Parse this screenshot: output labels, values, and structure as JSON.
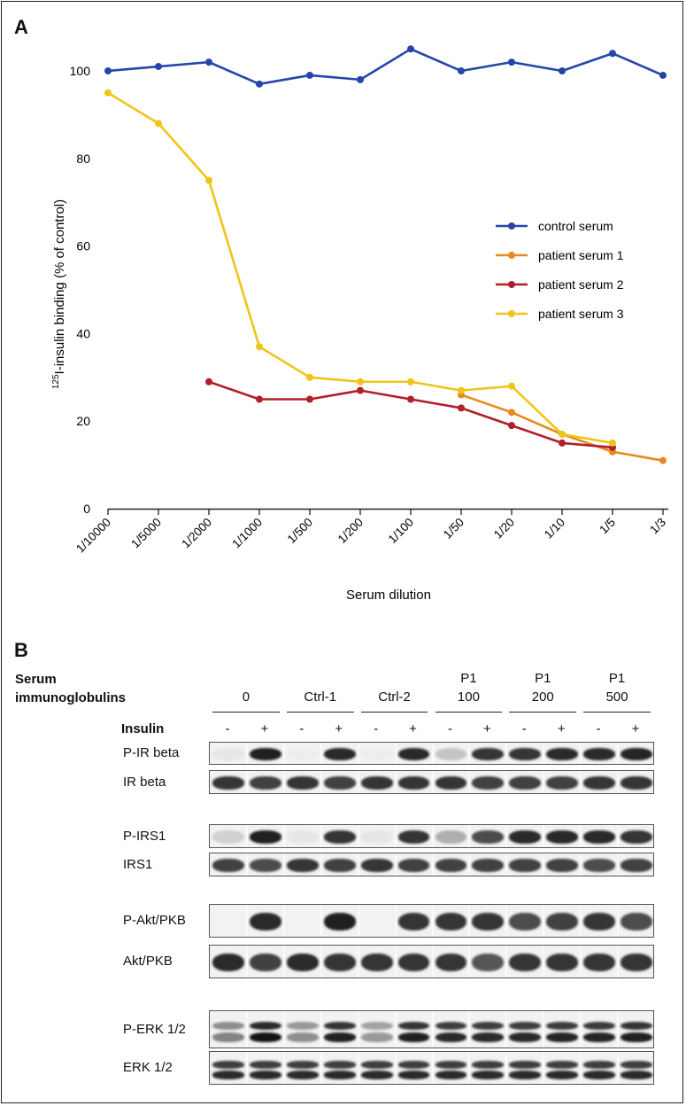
{
  "panel_a": {
    "letter": "A"
  },
  "panel_b": {
    "letter": "B"
  },
  "chart_data": {
    "type": "line",
    "title": "",
    "xlabel": "Serum dilution",
    "ylabel_sup": "125",
    "ylabel_main": "I-insulin binding (% of control)",
    "ylim": [
      0,
      100
    ],
    "yticks": [
      0,
      20,
      40,
      60,
      80,
      100
    ],
    "categories": [
      "1/10000",
      "1/5000",
      "1/2000",
      "1/1000",
      "1/500",
      "1/200",
      "1/100",
      "1/50",
      "1/20",
      "1/10",
      "1/5",
      "1/3"
    ],
    "grid": false,
    "legend_position": "right",
    "series": [
      {
        "name": "control serum",
        "color": "#2546a8",
        "values": [
          100,
          101,
          102,
          97,
          99,
          98,
          105,
          100,
          102,
          100,
          104,
          99
        ]
      },
      {
        "name": "patient serum 1",
        "color": "#e8891f",
        "values": [
          null,
          null,
          null,
          null,
          null,
          null,
          null,
          26,
          22,
          17,
          13,
          11
        ]
      },
      {
        "name": "patient serum 2",
        "color": "#b0202a",
        "values": [
          null,
          null,
          29,
          25,
          25,
          27,
          25,
          23,
          19,
          15,
          14,
          null
        ]
      },
      {
        "name": "patient serum 3",
        "color": "#f0c419",
        "values": [
          95,
          88,
          75,
          37,
          30,
          29,
          29,
          27,
          28,
          17,
          15,
          null
        ]
      }
    ]
  },
  "blot": {
    "header_line1": "Serum",
    "header_line2": "immunoglobulins",
    "insulin_label": "Insulin",
    "groups": [
      {
        "line1": "",
        "line2": "0"
      },
      {
        "line1": "",
        "line2": "Ctrl-1"
      },
      {
        "line1": "",
        "line2": "Ctrl-2"
      },
      {
        "line1": "P1",
        "line2": "100"
      },
      {
        "line1": "P1",
        "line2": "200"
      },
      {
        "line1": "P1",
        "line2": "500"
      }
    ],
    "insulin_signs": [
      "-",
      "+",
      "-",
      "+",
      "-",
      "+",
      "-",
      "+",
      "-",
      "+",
      "-",
      "+"
    ],
    "rows": [
      {
        "label": "P-IR beta",
        "intensities": [
          0.05,
          0.95,
          0.02,
          0.9,
          0.02,
          0.9,
          0.2,
          0.85,
          0.85,
          0.9,
          0.9,
          0.92
        ]
      },
      {
        "label": "IR beta",
        "intensities": [
          0.85,
          0.8,
          0.85,
          0.8,
          0.85,
          0.85,
          0.85,
          0.8,
          0.8,
          0.8,
          0.85,
          0.85
        ]
      },
      {
        "label": "P-IRS1",
        "intensities": [
          0.15,
          0.95,
          0.05,
          0.85,
          0.05,
          0.85,
          0.3,
          0.75,
          0.9,
          0.9,
          0.9,
          0.85
        ]
      },
      {
        "label": "IRS1",
        "intensities": [
          0.8,
          0.75,
          0.85,
          0.8,
          0.85,
          0.8,
          0.8,
          0.8,
          0.8,
          0.8,
          0.75,
          0.8
        ]
      },
      {
        "label": "P-Akt/PKB",
        "intensities": [
          0.0,
          0.9,
          0.0,
          0.95,
          0.0,
          0.85,
          0.85,
          0.85,
          0.75,
          0.8,
          0.85,
          0.75
        ]
      },
      {
        "label": "Akt/PKB",
        "intensities": [
          0.9,
          0.8,
          0.9,
          0.85,
          0.85,
          0.85,
          0.85,
          0.7,
          0.85,
          0.85,
          0.85,
          0.85
        ]
      },
      {
        "label": "P-ERK 1/2",
        "intensities": [
          0.5,
          1.0,
          0.45,
          0.95,
          0.4,
          0.95,
          0.9,
          0.9,
          0.9,
          0.92,
          0.92,
          0.95
        ]
      },
      {
        "label": "ERK 1/2",
        "intensities": [
          0.9,
          0.9,
          0.9,
          0.9,
          0.9,
          0.9,
          0.9,
          0.9,
          0.9,
          0.9,
          0.9,
          0.9
        ]
      }
    ]
  }
}
